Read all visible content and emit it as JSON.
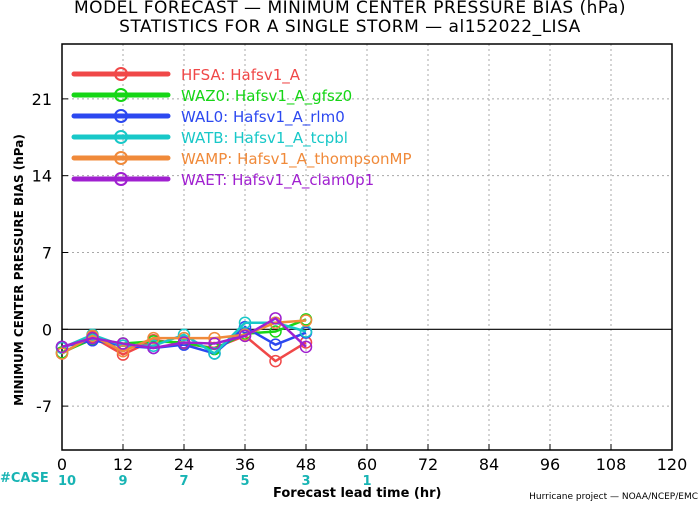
{
  "titles": {
    "line1": "MODEL FORECAST — MINIMUM CENTER PRESSURE BIAS (hPa)",
    "line2": "STATISTICS FOR A SINGLE STORM — al152022_LISA"
  },
  "footer": {
    "case_label": "#CASE",
    "credit": "Hurricane project — NOAA/NCEP/EMC"
  },
  "chart_data": {
    "type": "line",
    "xlabel": "Forecast lead time (hr)",
    "ylabel": "MINIMUM CENTER PRESSURE BIAS (hPa)",
    "xlim": [
      0,
      120
    ],
    "ylim": [
      -11,
      26
    ],
    "xticks": [
      0,
      12,
      24,
      36,
      48,
      60,
      72,
      84,
      96,
      108,
      120
    ],
    "yticks": [
      -7,
      0,
      7,
      14,
      21
    ],
    "grid": true,
    "legend_position": "top-left",
    "zero_line": true,
    "x": [
      0,
      6,
      12,
      18,
      24,
      30,
      36,
      42,
      48
    ],
    "case_counts": {
      "x": [
        0,
        12,
        24,
        36,
        48,
        60
      ],
      "values": [
        "10",
        "9",
        "7",
        "5",
        "3",
        "1"
      ]
    },
    "series": [
      {
        "name": "HFSA: Hafsv1_A",
        "color": "#f04848",
        "values": [
          -2.2,
          -0.7,
          -2.3,
          -1.0,
          -1.3,
          -1.7,
          -0.6,
          -2.9,
          -1.2
        ]
      },
      {
        "name": "WAZ0: Hafsv1_A_gfsz0",
        "color": "#16d616",
        "values": [
          -2.1,
          -0.9,
          -1.3,
          -1.1,
          -1.2,
          -1.8,
          -0.4,
          -0.2,
          0.9
        ]
      },
      {
        "name": "WAL0: Hafsv1_A_rlm0",
        "color": "#2c48f0",
        "values": [
          -1.6,
          -1.0,
          -1.5,
          -1.7,
          -1.4,
          -2.2,
          0.2,
          -1.4,
          -0.3
        ]
      },
      {
        "name": "WATB: Hafsv1_A_tcpbl",
        "color": "#18c8c8",
        "values": [
          -1.7,
          -0.5,
          -1.5,
          -1.5,
          -0.5,
          -2.2,
          0.6,
          0.6,
          -0.2
        ]
      },
      {
        "name": "WAMP: Hafsv1_A_thompsonMP",
        "color": "#f08a3a",
        "values": [
          -2.2,
          -0.6,
          -2.0,
          -0.8,
          -0.8,
          -0.8,
          -0.5,
          0.6,
          0.8
        ]
      },
      {
        "name": "WAET: Hafsv1_A_clam0p1",
        "color": "#a020d0",
        "values": [
          -1.6,
          -0.8,
          -1.3,
          -1.7,
          -1.2,
          -1.3,
          -0.6,
          1.0,
          -1.6
        ]
      }
    ]
  }
}
